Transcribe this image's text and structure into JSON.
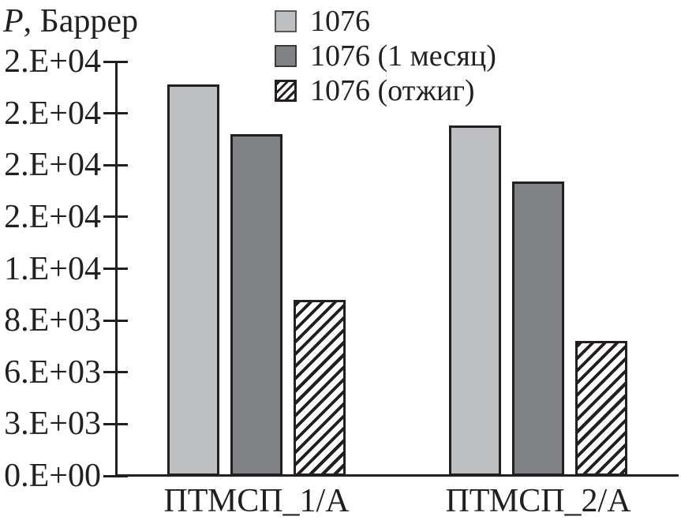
{
  "title": {
    "italic": "P",
    "rest": ", Баррер"
  },
  "legend": [
    {
      "label": "1076",
      "swatch": "light"
    },
    {
      "label": "1076 (1 месяц)",
      "swatch": "dark"
    },
    {
      "label": "1076 (отжиг)",
      "swatch": "hatch"
    }
  ],
  "chart_data": {
    "type": "bar",
    "title": "",
    "ylabel": "P, Баррер",
    "xlabel": "",
    "categories": [
      "ПТМСП_1/А",
      "ПТМСП_2/А"
    ],
    "series": [
      {
        "name": "1076",
        "values": [
          18900,
          16900
        ],
        "fill": "#bdbfc1",
        "pattern": "solid"
      },
      {
        "name": "1076 (1 месяц)",
        "values": [
          16500,
          14200
        ],
        "fill": "#808285",
        "pattern": "solid"
      },
      {
        "name": "1076 (отжиг)",
        "values": [
          8500,
          6500
        ],
        "fill": "#ffffff",
        "pattern": "diagonal-hatch"
      }
    ],
    "ylim": [
      0,
      20000
    ],
    "ytick_labels_bottom_to_top": [
      "0.E+00",
      "3.E+03",
      "6.E+03",
      "8.E+03",
      "1.E+04",
      "2.E+04",
      "2.E+04",
      "2.E+04",
      "2.E+04"
    ],
    "ytick_values_estimated": [
      0,
      2500,
      5000,
      7500,
      10000,
      12500,
      15000,
      17500,
      20000
    ],
    "grid": false,
    "legend_position": "top-center"
  },
  "colors": {
    "ink": "#231f20",
    "bar_light": "#bdbfc1",
    "bar_dark": "#808285",
    "background": "#ffffff"
  }
}
